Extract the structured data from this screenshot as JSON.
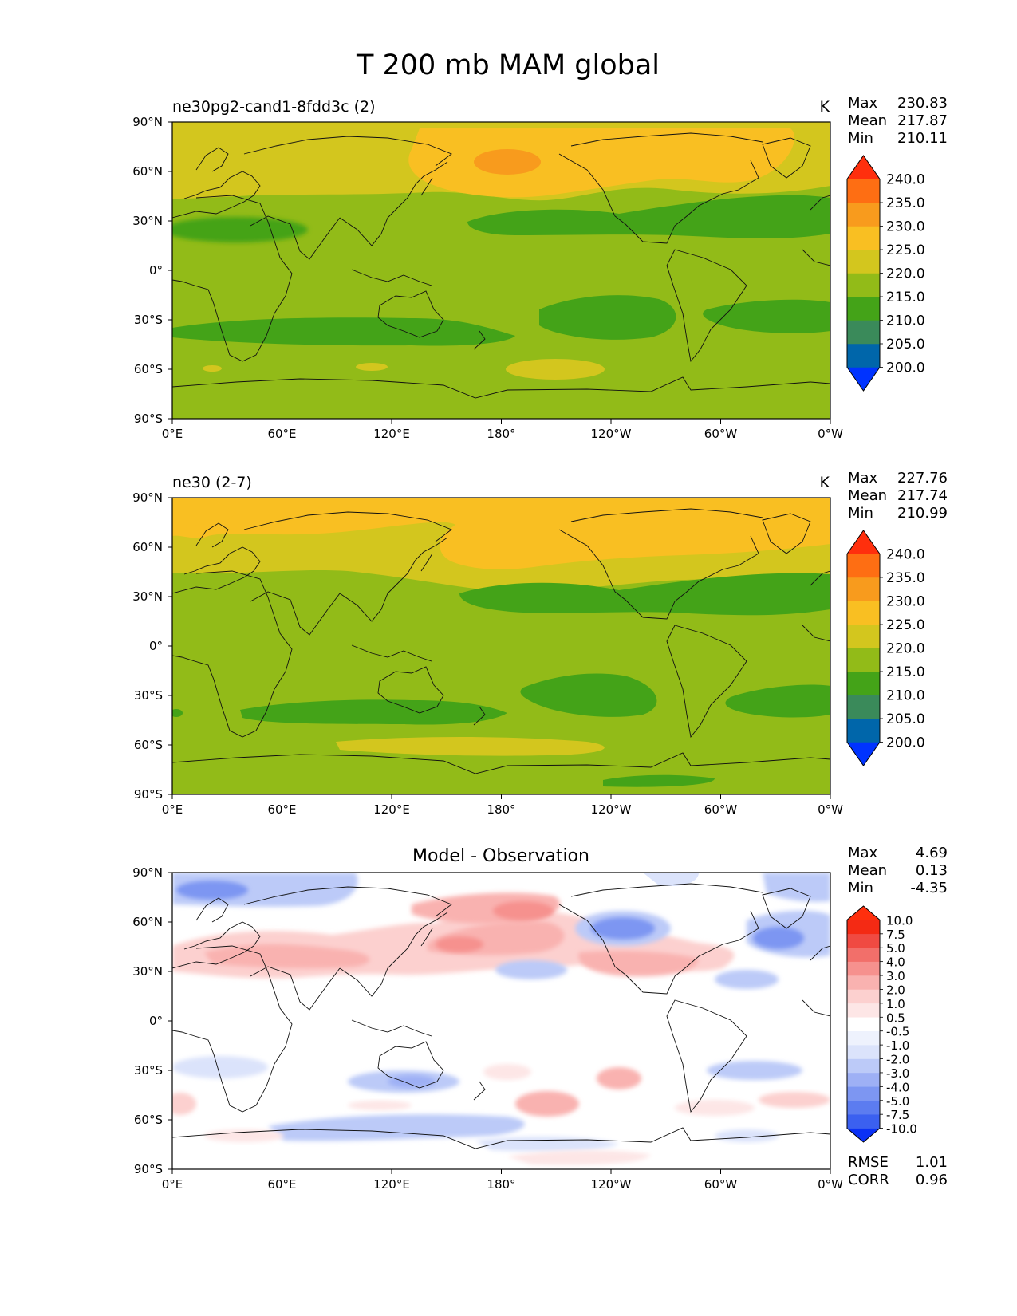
{
  "figure": {
    "title": "T 200 mb MAM global"
  },
  "chart_data": [
    {
      "type": "heatmap",
      "title_left": "ne30pg2-cand1-8fdd3c (2)",
      "units": "K",
      "stats": [
        {
          "label": "Max",
          "value": "230.83"
        },
        {
          "label": "Mean",
          "value": "217.87"
        },
        {
          "label": "Min",
          "value": "210.11"
        }
      ],
      "colorbar": {
        "ticks": [
          "200.0",
          "205.0",
          "210.0",
          "215.0",
          "220.0",
          "225.0",
          "230.0",
          "235.0",
          "240.0"
        ],
        "colors": [
          "#0033ff",
          "#0066aa",
          "#3a8a5a",
          "#44a318",
          "#92bb18",
          "#d3c61e",
          "#f9bf22",
          "#f89b1d",
          "#fe6e13",
          "#ff2f0d"
        ]
      },
      "xticks": [
        "0°E",
        "60°E",
        "120°E",
        "180°",
        "120°W",
        "60°W",
        "0°W"
      ],
      "yticks": [
        "90°N",
        "60°N",
        "30°N",
        "0°",
        "30°S",
        "60°S",
        "90°S"
      ]
    },
    {
      "type": "heatmap",
      "title_left": "ne30 (2-7)",
      "units": "K",
      "stats": [
        {
          "label": "Max",
          "value": "227.76"
        },
        {
          "label": "Mean",
          "value": "217.74"
        },
        {
          "label": "Min",
          "value": "210.99"
        }
      ],
      "colorbar": {
        "ticks": [
          "200.0",
          "205.0",
          "210.0",
          "215.0",
          "220.0",
          "225.0",
          "230.0",
          "235.0",
          "240.0"
        ],
        "colors": [
          "#0033ff",
          "#0066aa",
          "#3a8a5a",
          "#44a318",
          "#92bb18",
          "#d3c61e",
          "#f9bf22",
          "#f89b1d",
          "#fe6e13",
          "#ff2f0d"
        ]
      },
      "xticks": [
        "0°E",
        "60°E",
        "120°E",
        "180°",
        "120°W",
        "60°W",
        "0°W"
      ],
      "yticks": [
        "90°N",
        "60°N",
        "30°N",
        "0°",
        "30°S",
        "60°S",
        "90°S"
      ]
    },
    {
      "type": "heatmap",
      "title_center": "Model - Observation",
      "stats": [
        {
          "label": "Max",
          "value": "4.69"
        },
        {
          "label": "Mean",
          "value": "0.13"
        },
        {
          "label": "Min",
          "value": "-4.35"
        }
      ],
      "stats_bottom": [
        {
          "label": "RMSE",
          "value": "1.01"
        },
        {
          "label": "CORR",
          "value": "0.96"
        }
      ],
      "colorbar": {
        "ticks": [
          "-10.0",
          "-7.5",
          "-5.0",
          "-4.0",
          "-3.0",
          "-2.0",
          "-1.0",
          "-0.5",
          "0.5",
          "1.0",
          "2.0",
          "3.0",
          "4.0",
          "5.0",
          "7.5",
          "10.0"
        ],
        "colors": [
          "#0a31f5",
          "#3b60f0",
          "#5c7cf0",
          "#7d96f2",
          "#9eb0f5",
          "#bccaf8",
          "#dbe3fb",
          "#eef2fd",
          "#ffffff",
          "#fde6e6",
          "#fcd0cf",
          "#f9b2b0",
          "#f6918e",
          "#f26f6a",
          "#f04a42",
          "#f42a14",
          "#ff2f0d"
        ]
      },
      "xticks": [
        "0°E",
        "60°E",
        "120°E",
        "180°",
        "120°W",
        "60°W",
        "0°W"
      ],
      "yticks": [
        "90°N",
        "60°N",
        "30°N",
        "0°",
        "30°S",
        "60°S",
        "90°S"
      ]
    }
  ]
}
